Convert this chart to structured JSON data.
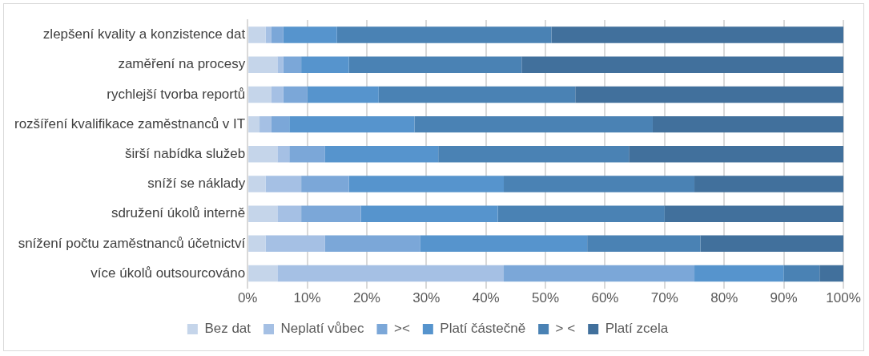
{
  "chart_data": {
    "type": "bar",
    "orientation": "horizontal",
    "stacked": true,
    "categories": [
      "zlepšení kvality a konzistence dat",
      "zaměření na procesy",
      "rychlejší tvorba reportů",
      "rozšíření kvalifikace zaměstnanců v IT",
      "širší nabídka služeb",
      "sníží se náklady",
      "sdružení úkolů interně",
      "snížení počtu zaměstnanců účetnictví",
      "více úkolů outsourcováno"
    ],
    "series": [
      {
        "name": "Bez dat",
        "color": "#c5d5ea",
        "values": [
          3,
          5,
          4,
          2,
          5,
          3,
          5,
          3,
          5
        ]
      },
      {
        "name": "Neplatí vůbec",
        "color": "#a5c0e4",
        "values": [
          1,
          1,
          2,
          2,
          2,
          6,
          4,
          10,
          38
        ]
      },
      {
        "name": "><",
        "color": "#7ba7d8",
        "values": [
          2,
          3,
          4,
          3,
          6,
          8,
          10,
          16,
          32
        ]
      },
      {
        "name": "Platí částečně",
        "color": "#5694cd",
        "values": [
          9,
          8,
          12,
          21,
          19,
          26,
          23,
          28,
          15
        ]
      },
      {
        "name": "> <",
        "color": "#4a82b4",
        "values": [
          36,
          29,
          33,
          40,
          32,
          32,
          28,
          19,
          6
        ]
      },
      {
        "name": "Platí zcela",
        "color": "#41709c",
        "values": [
          49,
          54,
          45,
          32,
          36,
          25,
          30,
          24,
          4
        ]
      }
    ],
    "xlim": [
      0,
      100
    ],
    "xticks": [
      {
        "value": 0,
        "label": "0%"
      },
      {
        "value": 10,
        "label": "10%"
      },
      {
        "value": 20,
        "label": "20%"
      },
      {
        "value": 30,
        "label": "30%"
      },
      {
        "value": 40,
        "label": "40%"
      },
      {
        "value": 50,
        "label": "50%"
      },
      {
        "value": 60,
        "label": "60%"
      },
      {
        "value": 70,
        "label": "70%"
      },
      {
        "value": 80,
        "label": "80%"
      },
      {
        "value": 90,
        "label": "90%"
      },
      {
        "value": 100,
        "label": "100%"
      }
    ],
    "grid": "x",
    "legend": "bottom"
  }
}
